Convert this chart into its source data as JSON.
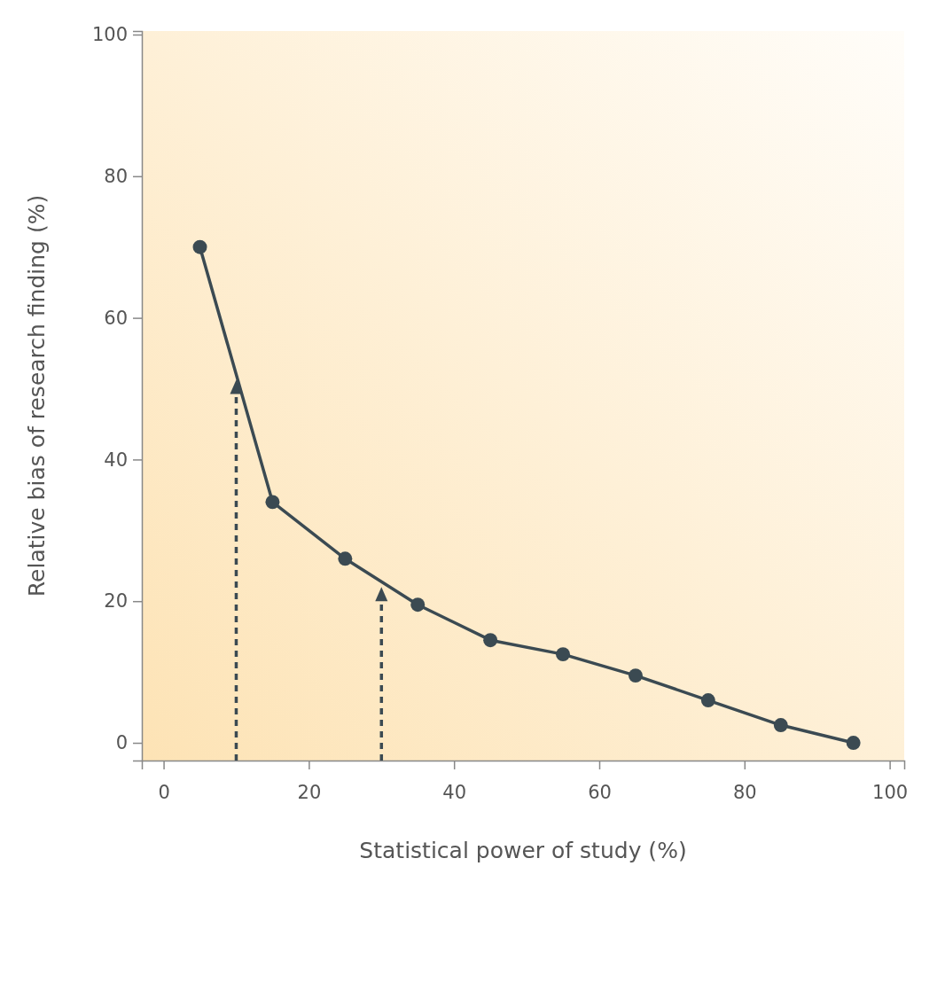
{
  "chart_data": {
    "type": "line",
    "xlabel": "Statistical power of study (%)",
    "ylabel": "Relative bias of research finding (%)",
    "x": [
      5,
      15,
      25,
      35,
      45,
      55,
      65,
      75,
      85,
      95
    ],
    "series": [
      {
        "color": "#3b4a52",
        "values": [
          70,
          34,
          26,
          19.5,
          14.5,
          12.5,
          9.5,
          6,
          2.5,
          0
        ]
      }
    ],
    "xlim": [
      -3,
      102
    ],
    "ylim": [
      -2.5,
      100.5
    ],
    "xticks": [
      0,
      20,
      40,
      60,
      80,
      100
    ],
    "yticks": [
      0,
      20,
      40,
      60,
      80,
      100
    ],
    "marker": "circle",
    "line_style": "solid",
    "grid": false,
    "ref_lines": [
      {
        "axis": "x",
        "value": 10,
        "color": "#3b4a52",
        "line_style": "dashed"
      },
      {
        "axis": "x",
        "value": 30,
        "color": "#3b4a52",
        "line_style": "dashed"
      }
    ]
  }
}
